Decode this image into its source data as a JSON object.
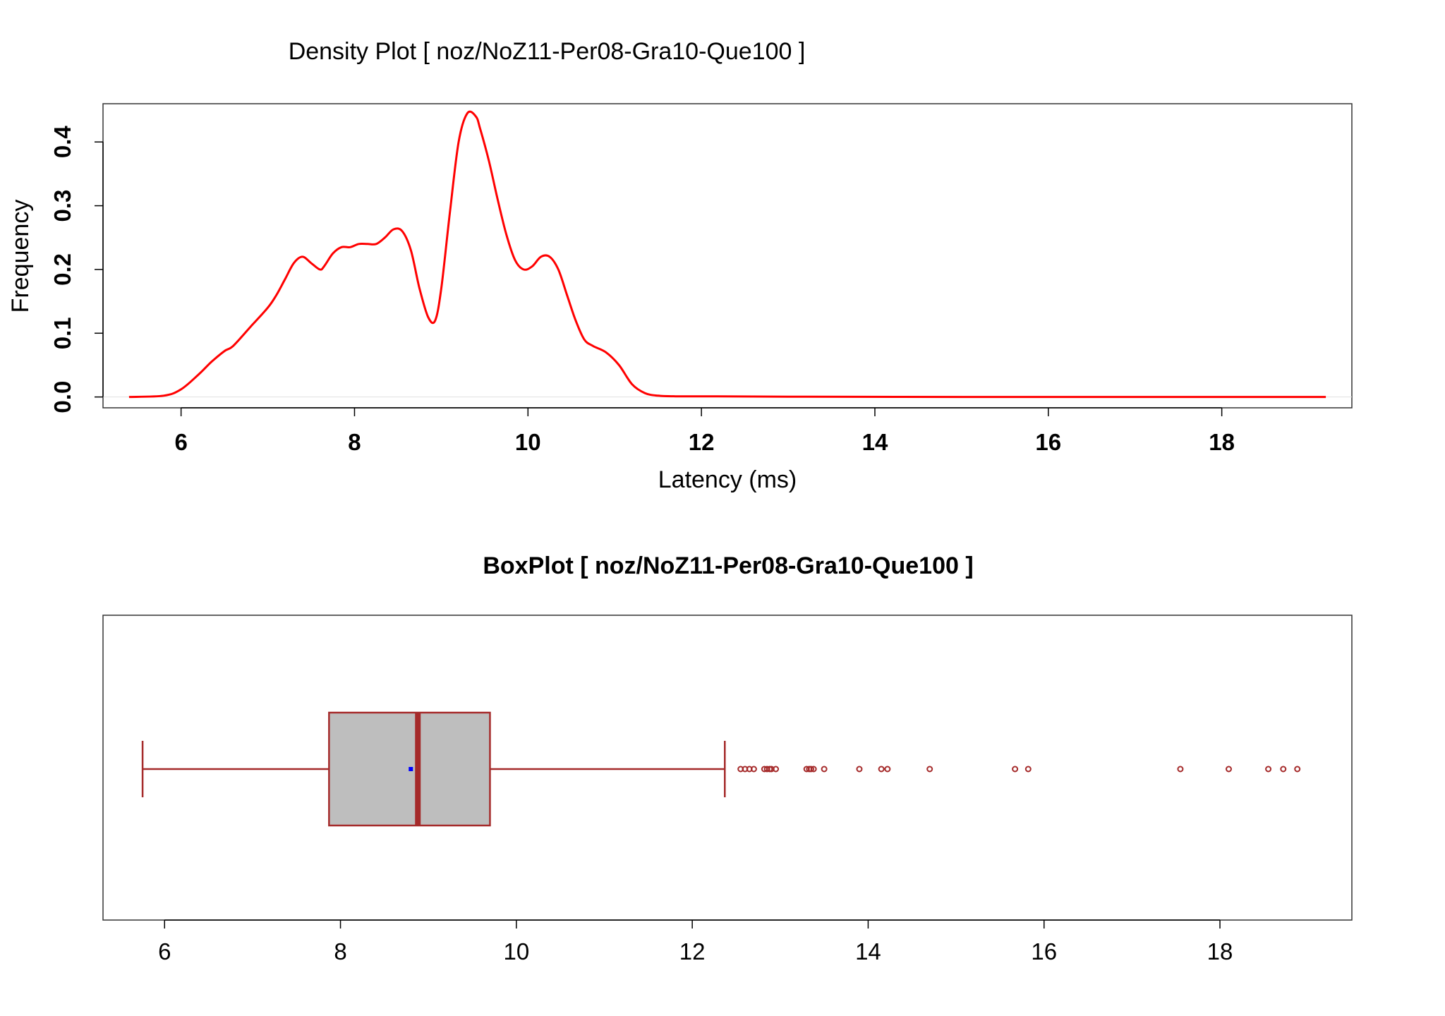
{
  "chart_data": [
    {
      "type": "line",
      "title": "Density Plot [ noz/NoZ11-Per08-Gra10-Que100 ]",
      "xlabel": "Latency (ms)",
      "ylabel": "Frequency",
      "xlim": [
        5.1,
        19.5
      ],
      "ylim": [
        -0.017,
        0.46
      ],
      "xticks": [
        "6",
        "8",
        "10",
        "12",
        "14",
        "16",
        "18"
      ],
      "xtick_values": [
        6,
        8,
        10,
        12,
        14,
        16,
        18
      ],
      "yticks": [
        "0.0",
        "0.1",
        "0.2",
        "0.3",
        "0.4"
      ],
      "ytick_values": [
        0,
        0.1,
        0.2,
        0.3,
        0.4
      ],
      "grid": false,
      "color": "#ff0000",
      "series": [
        {
          "x": [
            5.4,
            5.8,
            6.0,
            6.2,
            6.35,
            6.5,
            6.6,
            6.8,
            7.0,
            7.1,
            7.2,
            7.3,
            7.4,
            7.5,
            7.6,
            7.65,
            7.75,
            7.85,
            7.95,
            8.05,
            8.15,
            8.25,
            8.35,
            8.45,
            8.55,
            8.65,
            8.75,
            8.85,
            8.93,
            9.0,
            9.1,
            9.2,
            9.3,
            9.4,
            9.45,
            9.55,
            9.65,
            9.75,
            9.85,
            9.95,
            10.05,
            10.15,
            10.25,
            10.35,
            10.45,
            10.55,
            10.65,
            10.75,
            10.9,
            11.05,
            11.2,
            11.35,
            11.5,
            11.7,
            12.0,
            13.0,
            15.0,
            17.0,
            19.2
          ],
          "y": [
            0.0,
            0.002,
            0.012,
            0.035,
            0.055,
            0.072,
            0.08,
            0.11,
            0.14,
            0.16,
            0.185,
            0.21,
            0.22,
            0.21,
            0.2,
            0.205,
            0.225,
            0.235,
            0.235,
            0.24,
            0.24,
            0.24,
            0.25,
            0.263,
            0.26,
            0.23,
            0.17,
            0.125,
            0.12,
            0.17,
            0.29,
            0.4,
            0.445,
            0.44,
            0.42,
            0.37,
            0.31,
            0.255,
            0.215,
            0.2,
            0.205,
            0.22,
            0.22,
            0.2,
            0.16,
            0.12,
            0.09,
            0.08,
            0.07,
            0.05,
            0.02,
            0.006,
            0.002,
            0.001,
            0.001,
            0.0005,
            0.0,
            0.0,
            0.0
          ]
        }
      ]
    },
    {
      "type": "box",
      "title": "BoxPlot [ noz/NoZ11-Per08-Gra10-Que100 ]",
      "xlim": [
        5.3,
        19.5
      ],
      "xticks": [
        "6",
        "8",
        "10",
        "12",
        "14",
        "16",
        "18"
      ],
      "xtick_values": [
        6,
        8,
        10,
        12,
        14,
        16,
        18
      ],
      "whisker_low": 5.75,
      "q1": 7.87,
      "median": 8.88,
      "q3": 9.7,
      "whisker_high": 12.37,
      "mean": 8.8,
      "outliers": [
        12.55,
        12.6,
        12.65,
        12.7,
        12.82,
        12.85,
        12.88,
        12.9,
        12.95,
        13.3,
        13.33,
        13.35,
        13.38,
        13.5,
        13.9,
        14.15,
        14.22,
        14.7,
        15.67,
        15.82,
        17.55,
        18.1,
        18.55,
        18.72,
        18.88
      ],
      "box_fill": "#bebebe",
      "stroke_color": "#a52a2a",
      "mean_color": "#0000ff"
    }
  ]
}
